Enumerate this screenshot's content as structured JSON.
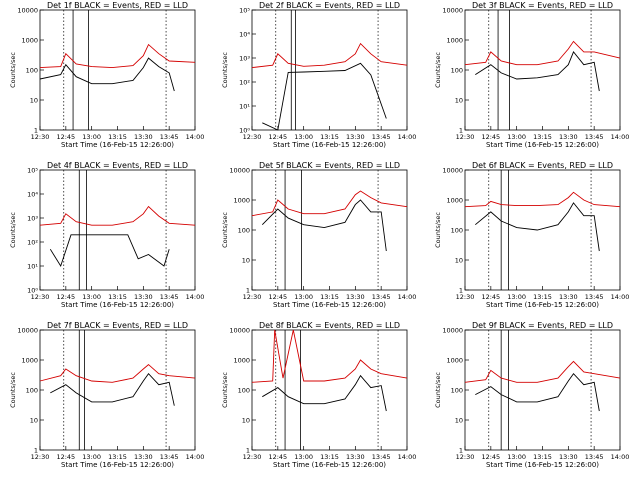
{
  "colors": {
    "events": "#000000",
    "lld": "#d40000",
    "axis": "#000000"
  },
  "chart_data": [
    {
      "type": "line",
      "det": "1f",
      "title": "Det 1f BLACK = Events, RED = LLD",
      "ylabel": "Counts/sec",
      "xlabel": "Start Time (16-Feb-15 12:26:00)",
      "yscale": "log",
      "ylim": [
        1,
        10000
      ],
      "ytick_labels": [
        "1",
        "10",
        "100",
        "1000",
        "10000"
      ],
      "xtick_labels": [
        "12:30",
        "12:45",
        "13:00",
        "13:15",
        "13:30",
        "13:45",
        "14:00"
      ],
      "series": [
        {
          "x": [
            12.5,
            12.7,
            12.75,
            12.85,
            13.0,
            13.2,
            13.4,
            13.5,
            13.55,
            13.65,
            13.75,
            13.8
          ],
          "y": [
            50,
            70,
            150,
            60,
            35,
            35,
            45,
            120,
            250,
            130,
            80,
            20
          ]
        },
        {
          "x": [
            12.5,
            12.7,
            12.75,
            12.85,
            13.0,
            13.2,
            13.4,
            13.5,
            13.55,
            13.65,
            13.75,
            14.0
          ],
          "y": [
            120,
            130,
            350,
            160,
            130,
            120,
            140,
            300,
            700,
            350,
            200,
            180
          ]
        }
      ]
    },
    {
      "type": "line",
      "det": "2f",
      "title": "Det 2f BLACK = Events, RED = LLD",
      "ylabel": "Counts/sec",
      "xlabel": "Start Time (16-Feb-15 12:26:00)",
      "yscale": "log",
      "ylim": [
        1,
        100000
      ],
      "ytick_labels": [
        "10⁰",
        "10¹",
        "10²",
        "10³",
        "10⁴",
        "10⁵"
      ],
      "xtick_labels": [
        "12:30",
        "12:45",
        "13:00",
        "13:15",
        "13:30",
        "13:45",
        "14:00"
      ],
      "series": [
        {
          "x": [
            12.6,
            12.75,
            12.85,
            13.0,
            13.2,
            13.4,
            13.55,
            13.65,
            13.8
          ],
          "y": [
            2,
            1,
            250,
            260,
            280,
            300,
            600,
            200,
            3
          ]
        },
        {
          "x": [
            12.5,
            12.7,
            12.75,
            12.85,
            13.0,
            13.2,
            13.4,
            13.5,
            13.55,
            13.65,
            13.75,
            14.0
          ],
          "y": [
            400,
            500,
            1500,
            600,
            450,
            500,
            700,
            1500,
            4000,
            1500,
            700,
            500
          ]
        }
      ]
    },
    {
      "type": "line",
      "det": "3f",
      "title": "Det 3f BLACK = Events, RED = LLD",
      "ylabel": "Counts/sec",
      "xlabel": "Start Time (16-Feb-15 12:26:00)",
      "yscale": "log",
      "ylim": [
        1,
        10000
      ],
      "ytick_labels": [
        "1",
        "10",
        "100",
        "1000",
        "10000"
      ],
      "xtick_labels": [
        "12:30",
        "12:45",
        "13:00",
        "13:15",
        "13:30",
        "13:45",
        "14:00"
      ],
      "series": [
        {
          "x": [
            12.6,
            12.75,
            12.85,
            13.0,
            13.2,
            13.4,
            13.5,
            13.55,
            13.65,
            13.75,
            13.8
          ],
          "y": [
            70,
            150,
            80,
            50,
            55,
            70,
            150,
            400,
            150,
            180,
            20
          ]
        },
        {
          "x": [
            12.5,
            12.7,
            12.75,
            12.85,
            13.0,
            13.2,
            13.4,
            13.5,
            13.55,
            13.65,
            13.75,
            14.0
          ],
          "y": [
            150,
            180,
            400,
            200,
            150,
            150,
            200,
            500,
            900,
            400,
            400,
            250
          ]
        }
      ]
    },
    {
      "type": "line",
      "det": "4f",
      "title": "Det 4f BLACK = Events, RED = LLD",
      "ylabel": "Counts/sec",
      "xlabel": "Start Time (16-Feb-15 12:26:00)",
      "yscale": "log",
      "ylim": [
        1,
        100000
      ],
      "ytick_labels": [
        "10⁰",
        "10¹",
        "10²",
        "10³",
        "10⁴",
        "10⁵"
      ],
      "xtick_labels": [
        "12:30",
        "12:45",
        "13:00",
        "13:15",
        "13:30",
        "13:45",
        "14:00"
      ],
      "series": [
        {
          "x": [
            12.6,
            12.7,
            12.8,
            13.0,
            13.2,
            13.35,
            13.45,
            13.55,
            13.7,
            13.75
          ],
          "y": [
            50,
            10,
            200,
            200,
            200,
            200,
            20,
            30,
            10,
            50
          ]
        },
        {
          "x": [
            12.5,
            12.7,
            12.75,
            12.85,
            13.0,
            13.2,
            13.4,
            13.5,
            13.55,
            13.65,
            13.75,
            14.0
          ],
          "y": [
            500,
            600,
            1500,
            700,
            500,
            500,
            700,
            1500,
            3000,
            1200,
            600,
            500
          ]
        }
      ]
    },
    {
      "type": "line",
      "det": "5f",
      "title": "Det 5f BLACK = Events, RED = LLD",
      "ylabel": "Counts/sec",
      "xlabel": "Start Time (16-Feb-15 12:26:00)",
      "yscale": "log",
      "ylim": [
        1,
        10000
      ],
      "ytick_labels": [
        "1",
        "10",
        "100",
        "1000",
        "10000"
      ],
      "xtick_labels": [
        "12:30",
        "12:45",
        "13:00",
        "13:15",
        "13:30",
        "13:45",
        "14:00"
      ],
      "series": [
        {
          "x": [
            12.6,
            12.75,
            12.85,
            13.0,
            13.2,
            13.4,
            13.5,
            13.55,
            13.65,
            13.75,
            13.8
          ],
          "y": [
            150,
            500,
            250,
            150,
            120,
            180,
            700,
            1000,
            400,
            400,
            20
          ]
        },
        {
          "x": [
            12.5,
            12.7,
            12.75,
            12.85,
            13.0,
            13.2,
            13.4,
            13.5,
            13.55,
            13.65,
            13.75,
            14.0
          ],
          "y": [
            300,
            400,
            1000,
            500,
            350,
            350,
            500,
            1500,
            2000,
            1200,
            800,
            600
          ]
        }
      ]
    },
    {
      "type": "line",
      "det": "6f",
      "title": "Det 6f BLACK = Events, RED = LLD",
      "ylabel": "Counts/sec",
      "xlabel": "Start Time (16-Feb-15 12:26:00)",
      "yscale": "log",
      "ylim": [
        1,
        10000
      ],
      "ytick_labels": [
        "1",
        "10",
        "100",
        "1000",
        "10000"
      ],
      "xtick_labels": [
        "12:30",
        "12:45",
        "13:00",
        "13:15",
        "13:30",
        "13:45",
        "14:00"
      ],
      "series": [
        {
          "x": [
            12.6,
            12.75,
            12.85,
            13.0,
            13.2,
            13.4,
            13.5,
            13.55,
            13.65,
            13.75,
            13.8
          ],
          "y": [
            150,
            400,
            200,
            120,
            100,
            150,
            400,
            800,
            300,
            300,
            20
          ]
        },
        {
          "x": [
            12.5,
            12.7,
            12.75,
            12.85,
            13.0,
            13.2,
            13.4,
            13.5,
            13.55,
            13.65,
            13.75,
            14.0
          ],
          "y": [
            600,
            650,
            900,
            700,
            650,
            650,
            700,
            1200,
            1800,
            1000,
            700,
            600
          ]
        }
      ]
    },
    {
      "type": "line",
      "det": "7f",
      "title": "Det 7f BLACK = Events, RED = LLD",
      "ylabel": "Counts/sec",
      "xlabel": "Start Time (16-Feb-15 12:26:00)",
      "yscale": "log",
      "ylim": [
        1,
        10000
      ],
      "ytick_labels": [
        "1",
        "10",
        "100",
        "1000",
        "10000"
      ],
      "xtick_labels": [
        "12:30",
        "12:45",
        "13:00",
        "13:15",
        "13:30",
        "13:45",
        "14:00"
      ],
      "series": [
        {
          "x": [
            12.6,
            12.75,
            12.85,
            13.0,
            13.2,
            13.4,
            13.5,
            13.55,
            13.65,
            13.75,
            13.8
          ],
          "y": [
            80,
            150,
            80,
            40,
            40,
            60,
            200,
            350,
            150,
            180,
            30
          ]
        },
        {
          "x": [
            12.5,
            12.7,
            12.75,
            12.85,
            13.0,
            13.2,
            13.4,
            13.5,
            13.55,
            13.65,
            13.75,
            14.0
          ],
          "y": [
            200,
            300,
            500,
            300,
            200,
            180,
            250,
            500,
            700,
            350,
            300,
            250
          ]
        }
      ]
    },
    {
      "type": "line",
      "det": "8f",
      "title": "Det 8f BLACK = Events, RED = LLD",
      "ylabel": "Counts/sec",
      "xlabel": "Start Time (16-Feb-15 12:26:00)",
      "yscale": "log",
      "ylim": [
        1,
        10000
      ],
      "ytick_labels": [
        "1",
        "10",
        "100",
        "1000",
        "10000"
      ],
      "xtick_labels": [
        "12:30",
        "12:45",
        "13:00",
        "13:15",
        "13:30",
        "13:45",
        "14:00"
      ],
      "series": [
        {
          "x": [
            12.6,
            12.75,
            12.85,
            13.0,
            13.2,
            13.4,
            13.5,
            13.55,
            13.65,
            13.75,
            13.8
          ],
          "y": [
            60,
            120,
            60,
            35,
            35,
            50,
            150,
            300,
            120,
            140,
            20
          ]
        },
        {
          "x": [
            12.5,
            12.7,
            12.72,
            12.8,
            12.9,
            13.0,
            13.2,
            13.4,
            13.5,
            13.55,
            13.65,
            13.75,
            14.0
          ],
          "y": [
            180,
            200,
            10000,
            250,
            10000,
            200,
            200,
            250,
            500,
            1000,
            500,
            350,
            250
          ]
        }
      ]
    },
    {
      "type": "line",
      "det": "9f",
      "title": "Det 9f BLACK = Events, RED = LLD",
      "ylabel": "Counts/sec",
      "xlabel": "Start Time (16-Feb-15 12:26:00)",
      "yscale": "log",
      "ylim": [
        1,
        10000
      ],
      "ytick_labels": [
        "1",
        "10",
        "100",
        "1000",
        "10000"
      ],
      "xtick_labels": [
        "12:30",
        "12:45",
        "13:00",
        "13:15",
        "13:30",
        "13:45",
        "14:00"
      ],
      "series": [
        {
          "x": [
            12.6,
            12.75,
            12.85,
            13.0,
            13.2,
            13.4,
            13.5,
            13.55,
            13.65,
            13.75,
            13.8
          ],
          "y": [
            70,
            130,
            70,
            40,
            40,
            60,
            200,
            350,
            150,
            180,
            20
          ]
        },
        {
          "x": [
            12.5,
            12.7,
            12.75,
            12.85,
            13.0,
            13.2,
            13.4,
            13.5,
            13.55,
            13.65,
            13.75,
            14.0
          ],
          "y": [
            180,
            220,
            450,
            250,
            180,
            180,
            250,
            600,
            900,
            400,
            350,
            250
          ]
        }
      ]
    }
  ]
}
